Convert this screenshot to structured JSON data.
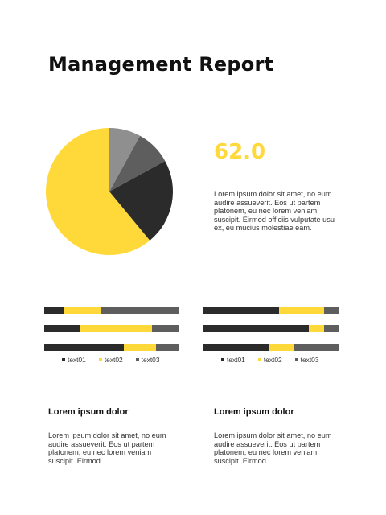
{
  "report": {
    "title": "Management Report",
    "kpi_value": "62.0",
    "main_paragraph": "Lorem ipsum dolor sit amet, no eum audire assueverit.  Eos ut partem platonem, eu nec lorem veniam suscipit.  Eirmod officiis vulputate usu ex, eu mucius molestiae eam."
  },
  "colors": {
    "yellow": "#FFD93A",
    "black": "#2B2B2B",
    "dark_gray": "#5E5E5E",
    "gray": "#8F8F8F"
  },
  "chart_data": [
    {
      "type": "pie",
      "title": "",
      "slices": [
        {
          "value": 61,
          "color": "#FFD93A"
        },
        {
          "value": 22,
          "color": "#2B2B2B"
        },
        {
          "value": 9,
          "color": "#5E5E5E"
        },
        {
          "value": 8,
          "color": "#8F8F8F"
        }
      ]
    },
    {
      "type": "bar",
      "stacked": true,
      "orientation": "horizontal",
      "series": [
        {
          "name": "text01",
          "color": "#2B2B2B",
          "values": [
            15,
            27,
            59
          ]
        },
        {
          "name": "text02",
          "color": "#FFD93A",
          "values": [
            27,
            53,
            24
          ]
        },
        {
          "name": "text03",
          "color": "#5E5E5E",
          "values": [
            58,
            20,
            17
          ]
        }
      ]
    },
    {
      "type": "bar",
      "stacked": true,
      "orientation": "horizontal",
      "series": [
        {
          "name": "text01",
          "color": "#2B2B2B",
          "values": [
            56,
            78,
            48
          ]
        },
        {
          "name": "text02",
          "color": "#FFD93A",
          "values": [
            33,
            11,
            19
          ]
        },
        {
          "name": "text03",
          "color": "#5E5E5E",
          "values": [
            11,
            11,
            33
          ]
        }
      ]
    }
  ],
  "legend": {
    "labels": [
      "text01",
      "text02",
      "text03"
    ]
  },
  "sections": [
    {
      "heading": "Lorem ipsum dolor",
      "paragraph": "Lorem ipsum dolor sit amet, no eum audire assueverit.  Eos ut partem platonem, eu nec lorem veniam suscipit.  Eirmod."
    },
    {
      "heading": "Lorem ipsum dolor",
      "paragraph": "Lorem ipsum dolor sit amet, no eum audire assueverit.  Eos ut partem platonem, eu nec lorem veniam suscipit.  Eirmod."
    }
  ]
}
